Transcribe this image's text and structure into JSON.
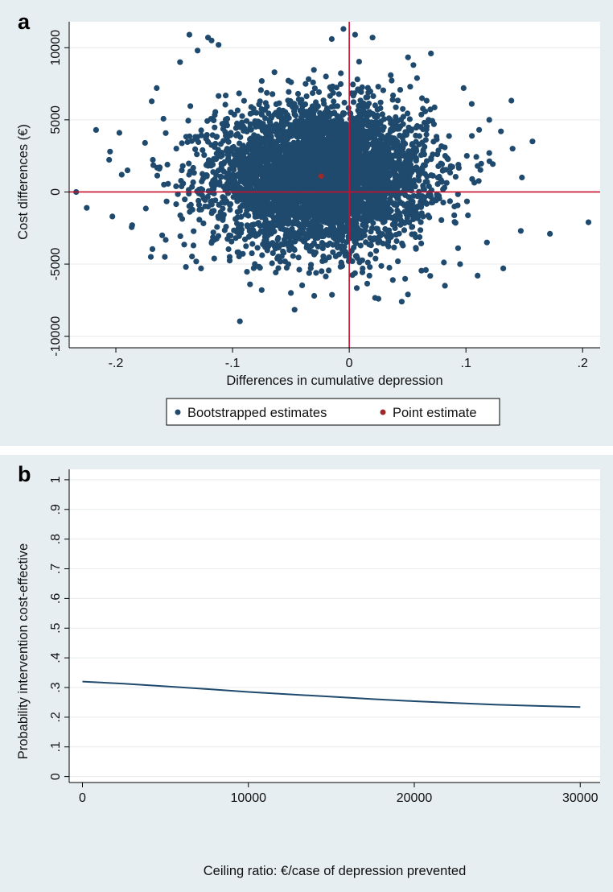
{
  "chart_data": [
    {
      "panel_label": "a",
      "type": "scatter",
      "title": "",
      "xlabel": "Differences in cumulative depression",
      "ylabel": "Cost differences (€)",
      "xlim": [
        -0.24,
        0.215
      ],
      "ylim": [
        -10800,
        11800
      ],
      "x_ticks": [
        -0.2,
        -0.1,
        0,
        0.1,
        0.2
      ],
      "x_tick_labels": [
        "-.2",
        "-.1",
        "0",
        ".1",
        ".2"
      ],
      "y_ticks": [
        -10000,
        -5000,
        0,
        5000,
        10000
      ],
      "y_tick_labels": [
        "-10000",
        "-5000",
        "0",
        "5000",
        "10000"
      ],
      "grid": true,
      "reference_lines": {
        "x": 0,
        "y": 0,
        "color": "#c8102e"
      },
      "legend": {
        "position": "bottom",
        "entries": [
          "Bootstrapped estimates",
          "Point estimate"
        ]
      },
      "series": [
        {
          "name": "Bootstrapped estimates",
          "color": "#1f4a6e",
          "distribution": {
            "center": [
              -0.024,
              1100
            ],
            "sd": [
              0.045,
              2400
            ],
            "n": 5000
          },
          "points": [
            [
              -0.234,
              0
            ],
            [
              -0.225,
              -1100
            ],
            [
              -0.217,
              4300
            ],
            [
              -0.203,
              -1700
            ],
            [
              -0.197,
              4100
            ],
            [
              -0.205,
              2800
            ],
            [
              -0.195,
              1200
            ],
            [
              -0.186,
              -2300
            ],
            [
              -0.165,
              7200
            ],
            [
              -0.158,
              -4500
            ],
            [
              -0.145,
              9000
            ],
            [
              -0.137,
              10900
            ],
            [
              -0.13,
              9800
            ],
            [
              -0.121,
              10700
            ],
            [
              -0.118,
              10500
            ],
            [
              -0.127,
              -5300
            ],
            [
              -0.112,
              10200
            ],
            [
              -0.085,
              -6400
            ],
            [
              -0.075,
              -6800
            ],
            [
              -0.05,
              -7000
            ],
            [
              -0.03,
              -7200
            ],
            [
              -0.015,
              10600
            ],
            [
              -0.005,
              11300
            ],
            [
              0.005,
              10900
            ],
            [
              0.02,
              10700
            ],
            [
              0.025,
              -7400
            ],
            [
              0.045,
              -7600
            ],
            [
              0.055,
              8800
            ],
            [
              0.07,
              9600
            ],
            [
              0.082,
              -6500
            ],
            [
              0.098,
              7200
            ],
            [
              0.105,
              6100
            ],
            [
              0.11,
              -5800
            ],
            [
              0.12,
              5000
            ],
            [
              0.13,
              4200
            ],
            [
              0.132,
              -5300
            ],
            [
              0.14,
              3000
            ],
            [
              0.148,
              1000
            ],
            [
              0.147,
              -2700
            ],
            [
              0.157,
              3500
            ],
            [
              0.172,
              -2900
            ],
            [
              0.205,
              -2100
            ],
            [
              0.095,
              -5000
            ],
            [
              0.118,
              -3500
            ],
            [
              -0.175,
              3400
            ],
            [
              -0.17,
              -4500
            ],
            [
              -0.14,
              -5200
            ],
            [
              0.12,
              2700
            ],
            [
              0.11,
              1800
            ],
            [
              -0.19,
              1500
            ]
          ]
        },
        {
          "name": "Point estimate",
          "color": "#9b2a2a",
          "points": [
            [
              -0.024,
              1100
            ]
          ]
        }
      ]
    },
    {
      "panel_label": "b",
      "type": "line",
      "title": "",
      "xlabel": "Ceiling ratio: €/case of depression prevented",
      "ylabel": "Probability intervention cost-effective",
      "xlim": [
        -800,
        31200
      ],
      "ylim": [
        -0.02,
        1.035
      ],
      "x_ticks": [
        0,
        10000,
        20000,
        30000
      ],
      "x_tick_labels": [
        "0",
        "10000",
        "20000",
        "30000"
      ],
      "y_ticks": [
        0,
        0.1,
        0.2,
        0.3,
        0.4,
        0.5,
        0.6,
        0.7,
        0.8,
        0.9,
        1
      ],
      "y_tick_labels": [
        "0",
        ".1",
        ".2",
        ".3",
        ".4",
        ".5",
        ".6",
        ".7",
        ".8",
        ".9",
        "1"
      ],
      "grid": true,
      "series": [
        {
          "color": "#1f4a6e",
          "x": [
            0,
            2500,
            5000,
            7500,
            10000,
            12500,
            15000,
            17500,
            20000,
            22500,
            25000,
            27500,
            30000
          ],
          "y": [
            0.32,
            0.313,
            0.304,
            0.295,
            0.285,
            0.277,
            0.269,
            0.261,
            0.254,
            0.248,
            0.242,
            0.238,
            0.234
          ]
        }
      ]
    }
  ]
}
